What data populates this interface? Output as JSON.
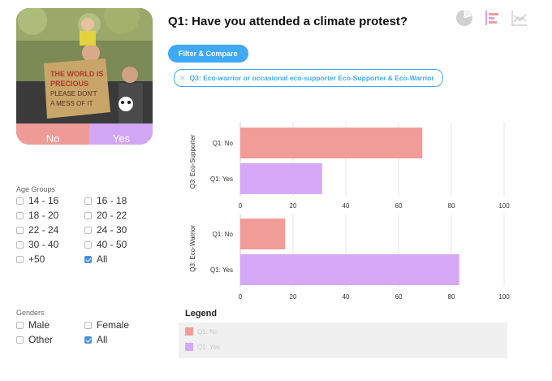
{
  "question": "Q1: Have you attended a climate protest?",
  "answer_buttons": {
    "no_label": "No",
    "yes_label": "Yes"
  },
  "toolbar": {
    "icons": [
      "pie-chart-icon",
      "bar-chart-icon",
      "trend-icon"
    ]
  },
  "filter": {
    "button_label": "Filter & Compare",
    "chip_label": "Q3: Eco-warrior or occasional eco-supporter  Eco-Supporter & Eco-Warrior"
  },
  "age_groups": {
    "heading": "Age Groups",
    "options": [
      {
        "label": "14 - 16",
        "checked": false
      },
      {
        "label": "16 - 18",
        "checked": false
      },
      {
        "label": "18 - 20",
        "checked": false
      },
      {
        "label": "20 - 22",
        "checked": false
      },
      {
        "label": "22 - 24",
        "checked": false
      },
      {
        "label": "24 - 30",
        "checked": false
      },
      {
        "label": "30 - 40",
        "checked": false
      },
      {
        "label": "40 - 50",
        "checked": false
      },
      {
        "label": "+50",
        "checked": false
      },
      {
        "label": "All",
        "checked": true
      }
    ]
  },
  "genders": {
    "heading": "Genders",
    "options": [
      {
        "label": "Male",
        "checked": false
      },
      {
        "label": "Female",
        "checked": false
      },
      {
        "label": "Other",
        "checked": false
      },
      {
        "label": "All",
        "checked": true
      }
    ]
  },
  "chart_data": [
    {
      "type": "bar",
      "orientation": "horizontal",
      "title": "",
      "ylabel": "Q3: Eco-Supporter",
      "categories": [
        "Q1: No",
        "Q1: Yes"
      ],
      "values": [
        69,
        31
      ],
      "colors": [
        "#f29c98",
        "#d6a8f8"
      ],
      "xlim": [
        0,
        100
      ],
      "xticks": [
        0,
        20,
        40,
        60,
        80,
        100
      ],
      "grid": true
    },
    {
      "type": "bar",
      "orientation": "horizontal",
      "title": "",
      "ylabel": "Q3: Eco-Warrior",
      "categories": [
        "Q1: No",
        "Q1: Yes"
      ],
      "values": [
        17,
        83
      ],
      "colors": [
        "#f29c98",
        "#d6a8f8"
      ],
      "xlim": [
        0,
        100
      ],
      "xticks": [
        0,
        20,
        40,
        60,
        80,
        100
      ],
      "grid": true
    }
  ],
  "legend": {
    "title": "Legend",
    "items": [
      {
        "label": "Q1: No",
        "color": "#f29c98"
      },
      {
        "label": "Q1: Yes",
        "color": "#d6a8f8"
      }
    ]
  },
  "colors": {
    "accent": "#3fa9f5",
    "no": "#ee9b98",
    "yes": "#d0a6f5",
    "checked": "#4a90e2"
  }
}
